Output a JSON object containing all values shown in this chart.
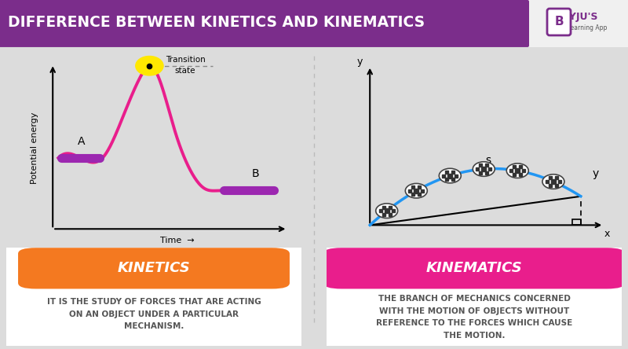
{
  "title": "DIFFERENCE BETWEEN KINETICS AND KINEMATICS",
  "title_bg_color": "#7B2D8B",
  "title_text_color": "#FFFFFF",
  "panel_bg_color": "#DCDCDC",
  "white_box_color": "#FFFFFF",
  "kinetics_label": "KINETICS",
  "kinematics_label": "KINEMATICS",
  "kinetics_color_left": "#F47920",
  "kinetics_color_right": "#E8520A",
  "kinematics_color_left": "#E91E8C",
  "kinematics_color_right": "#C2185B",
  "kinetics_desc": "IT IS THE STUDY OF FORCES THAT ARE ACTING\nON AN OBJECT UNDER A PARTICULAR\nMECHANISM.",
  "kinematics_desc": "THE BRANCH OF MECHANICS CONCERNED\nWITH THE MOTION OF OBJECTS WITHOUT\nREFERENCE TO THE FORCES WHICH CAUSE\nTHE MOTION.",
  "curve_color": "#E91E8C",
  "ball_curve_color": "#2196F3",
  "transition_dot_color": "#FFE800",
  "plateau_color": "#9C27B0",
  "axis_label_pe": "Potential energy",
  "axis_label_time": "Time",
  "transition_text": "Transition\nstate",
  "label_A": "A",
  "label_B": "B",
  "label_s": "s",
  "label_y_axis_left": "y",
  "label_x_axis_right": "x",
  "label_y_landing": "y",
  "byju_color": "#7B2D8B",
  "logo_bg": "#F0F0F0"
}
